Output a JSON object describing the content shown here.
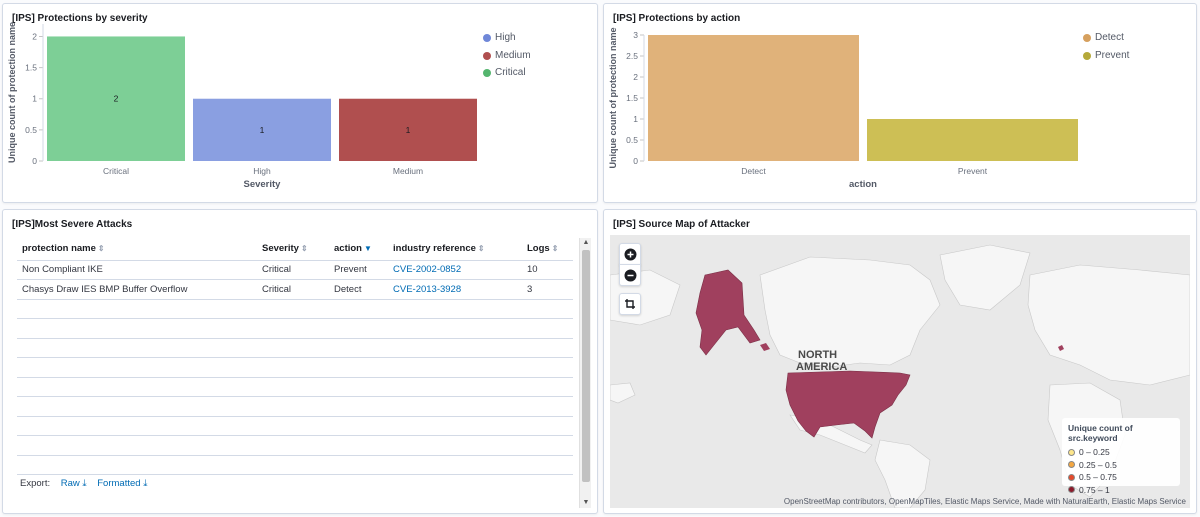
{
  "panels": {
    "severity": {
      "title": "[IPS] Protections by severity",
      "chart_data": {
        "type": "bar",
        "categories": [
          "Critical",
          "High",
          "Medium"
        ],
        "values": [
          2,
          1,
          1
        ],
        "colors": [
          "#7dcf96",
          "#8a9fe1",
          "#b04f4f"
        ],
        "ylabel": "Unique count of protection name",
        "xlabel": "Severity",
        "yticks": [
          "0",
          "0.5",
          "1",
          "1.5",
          "2"
        ],
        "ylim": [
          0,
          2.2
        ],
        "data_labels": [
          "2",
          "1",
          "1"
        ],
        "legend": [
          {
            "label": "High",
            "color": "#6f87d8"
          },
          {
            "label": "Medium",
            "color": "#b04f4f"
          },
          {
            "label": "Critical",
            "color": "#54b56e"
          }
        ],
        "legend_position": "top-right"
      }
    },
    "action": {
      "title": "[IPS] Protections by action",
      "chart_data": {
        "type": "bar",
        "categories": [
          "Detect",
          "Prevent"
        ],
        "values": [
          3,
          1
        ],
        "colors": [
          "#e0b27a",
          "#cdbf55"
        ],
        "ylabel": "Unique count of protection name",
        "xlabel": "action",
        "yticks": [
          "0",
          "0.5",
          "1",
          "1.5",
          "2",
          "2.5",
          "3"
        ],
        "ylim": [
          0,
          3
        ],
        "legend": [
          {
            "label": "Detect",
            "color": "#d6a05e"
          },
          {
            "label": "Prevent",
            "color": "#b5a93a"
          }
        ],
        "legend_position": "top-right"
      }
    },
    "attacks": {
      "title": "[IPS]Most Severe Attacks",
      "columns": [
        "protection name",
        "Severity",
        "action",
        "industry reference",
        "Logs"
      ],
      "rows": [
        [
          "Non Compliant IKE",
          "Critical",
          "Prevent",
          "CVE-2002-0852",
          "10"
        ],
        [
          "Chasys Draw IES BMP Buffer Overflow",
          "Critical",
          "Detect",
          "CVE-2013-3928",
          "3"
        ]
      ],
      "export_label": "Export:",
      "export_raw": "Raw",
      "export_formatted": "Formatted"
    },
    "map": {
      "title": "[IPS] Source Map of Attacker",
      "region_label_1": "NORTH",
      "region_label_2": "AMERICA",
      "legend_title": "Unique count of src.keyword",
      "legend_items": [
        {
          "label": "0 – 0.25",
          "color": "#fde68a"
        },
        {
          "label": "0.25 – 0.5",
          "color": "#f4a742"
        },
        {
          "label": "0.5 – 0.75",
          "color": "#e44a2b"
        },
        {
          "label": "0.75 – 1",
          "color": "#8b1a2a"
        }
      ],
      "attribution": "OpenStreetMap contributors, OpenMapTiles, Elastic Maps Service, Made with NaturalEarth, Elastic Maps Service",
      "fill_color": "#a0405e"
    }
  }
}
